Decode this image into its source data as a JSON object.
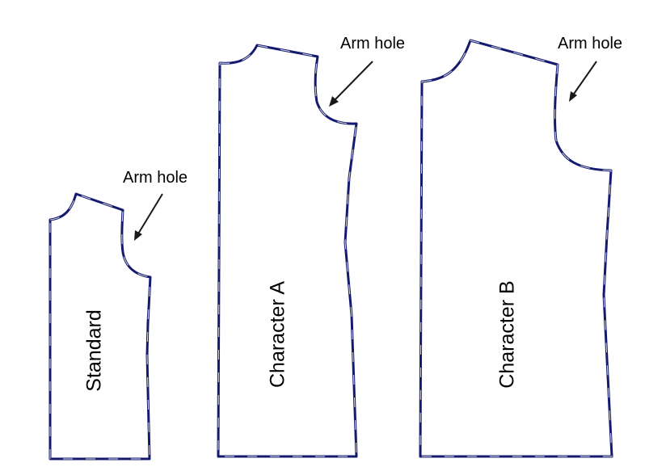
{
  "pieces": [
    {
      "label": "Standard",
      "annotation": "Arm hole"
    },
    {
      "label": "Character A",
      "annotation": "Arm hole"
    },
    {
      "label": "Character B",
      "annotation": "Arm hole"
    }
  ],
  "colors": {
    "outline": "#141a6e",
    "text": "#000000",
    "background": "#ffffff"
  }
}
